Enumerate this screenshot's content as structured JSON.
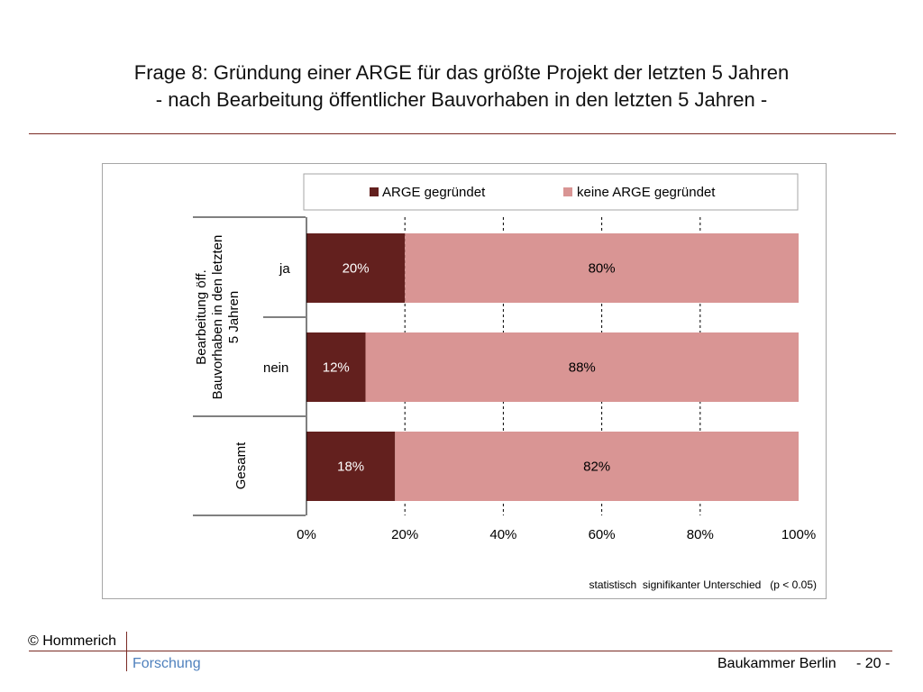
{
  "slide": {
    "title_line1": "Frage 8: Gründung einer ARGE für das größte Projekt der letzten 5 Jahren",
    "title_line2": "- nach Bearbeitung öffentlicher Bauvorhaben in den letzten 5 Jahren -"
  },
  "footer": {
    "copyright": "© Hommerich",
    "forschung": "Forschung",
    "org": "Baukammer Berlin",
    "page": "- 20 -"
  },
  "colors": {
    "accent_rule": "#7a2a24",
    "series_1": "#63201e",
    "series_2": "#d99594",
    "forschung_text": "#4f81bd"
  },
  "chart_data": {
    "type": "bar",
    "orientation": "horizontal",
    "stacked": "percent",
    "categories": [
      "ja",
      "nein",
      "Gesamt"
    ],
    "group_labels": [
      {
        "label": "Bearbeitung öff. Bauvorhaben in den letzten 5 Jahren",
        "lines": [
          "Bearbeitung öff.",
          "Bauvorhaben in den letzten",
          "5 Jahren"
        ]
      },
      {
        "label": "Gesamt",
        "lines": [
          "Gesamt"
        ]
      }
    ],
    "series": [
      {
        "name": "ARGE gegründet",
        "values": [
          20,
          12,
          18
        ],
        "labels": [
          "20%",
          "12%",
          "18%"
        ]
      },
      {
        "name": "keine ARGE gegründet",
        "values": [
          80,
          88,
          82
        ],
        "labels": [
          "80%",
          "88%",
          "82%"
        ]
      }
    ],
    "x_ticks": [
      "0%",
      "20%",
      "40%",
      "60%",
      "80%",
      "100%"
    ],
    "xlim": [
      0,
      100
    ],
    "grid": "vertical dashed",
    "legend_position": "top",
    "note": "statistisch  signifikanter Unterschied   (p < 0.05)"
  }
}
